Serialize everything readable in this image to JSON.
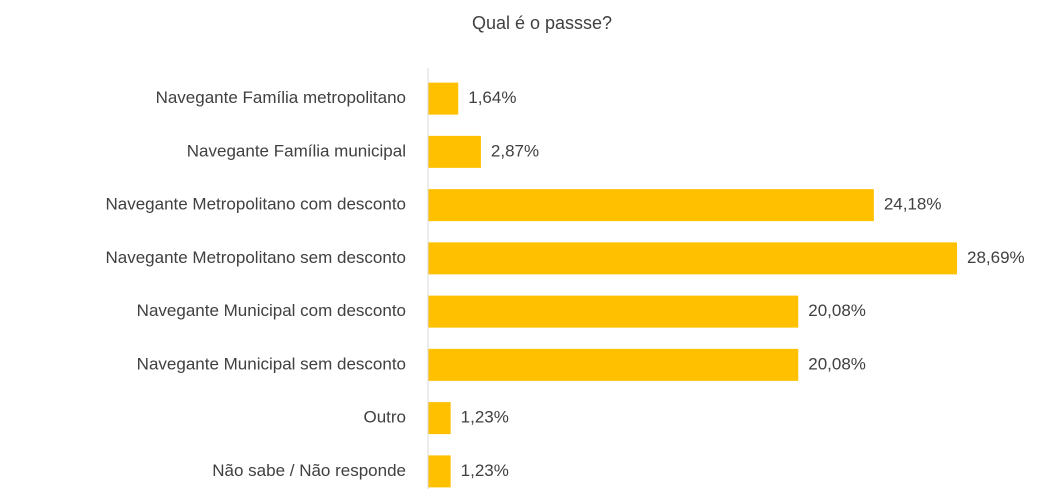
{
  "chart_data": {
    "type": "bar",
    "orientation": "horizontal",
    "title": "Qual é o passse?",
    "categories": [
      "Navegante Família metropolitano",
      "Navegante Família municipal",
      "Navegante Metropolitano com desconto",
      "Navegante Metropolitano sem desconto",
      "Navegante Municipal com desconto",
      "Navegante Municipal sem desconto",
      "Outro",
      "Não sabe / Não responde"
    ],
    "values": [
      1.64,
      2.87,
      24.18,
      28.69,
      20.08,
      20.08,
      1.23,
      1.23
    ],
    "value_labels": [
      "1,64%",
      "2,87%",
      "24,18%",
      "28,69%",
      "20,08%",
      "20,08%",
      "1,23%",
      "1,23%"
    ],
    "color": "#ffc000"
  }
}
